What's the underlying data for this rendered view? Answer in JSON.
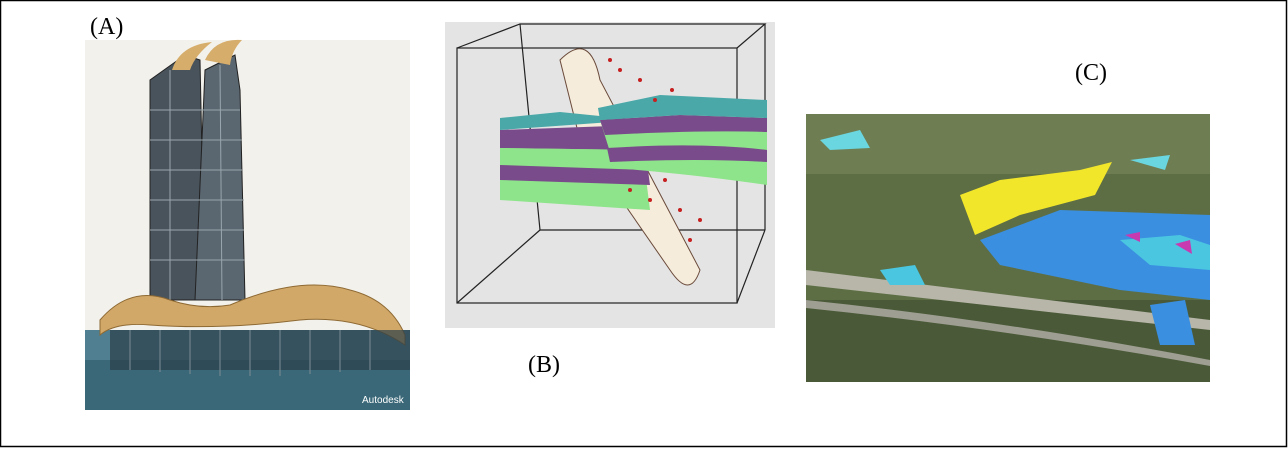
{
  "panels": [
    {
      "label": "(A)",
      "watermark": "Autodesk"
    },
    {
      "label": "(B)"
    },
    {
      "label": "(C)"
    }
  ]
}
